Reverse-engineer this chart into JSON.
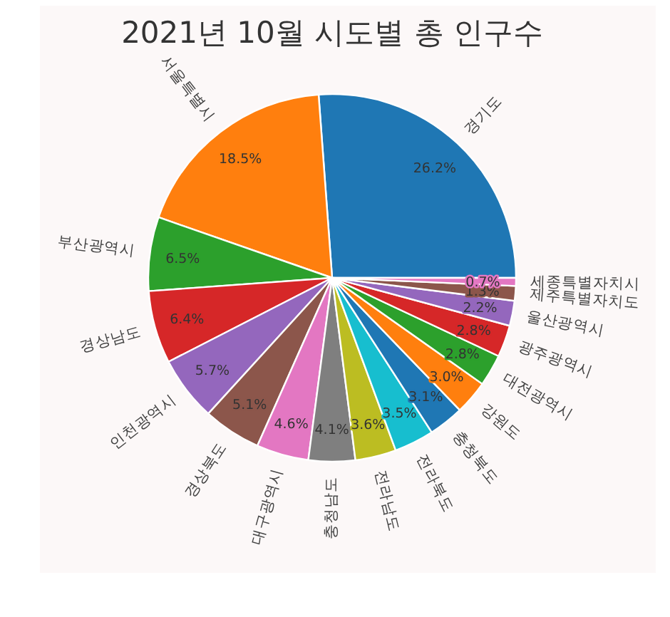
{
  "chart_data": {
    "type": "pie",
    "title": "2021년 10월 시도별 총 인구수",
    "categories": [
      "경기도",
      "서울특별시",
      "부산광역시",
      "경상남도",
      "인천광역시",
      "경상북도",
      "대구광역시",
      "충청남도",
      "전라남도",
      "전라북도",
      "충청북도",
      "강원도",
      "대전광역시",
      "광주광역시",
      "울산광역시",
      "제주특별자치도",
      "세종특별자치시"
    ],
    "values": [
      26.2,
      18.5,
      6.5,
      6.4,
      5.7,
      5.1,
      4.6,
      4.1,
      3.6,
      3.5,
      3.1,
      3.0,
      2.8,
      2.8,
      2.2,
      1.3,
      0.7
    ],
    "colors": [
      "#1f77b4",
      "#ff7f0e",
      "#2ca02c",
      "#d62728",
      "#9467bd",
      "#8c564b",
      "#e377c2",
      "#7f7f7f",
      "#bcbd22",
      "#17becf",
      "#1f77b4",
      "#ff7f0e",
      "#2ca02c",
      "#d62728",
      "#9467bd",
      "#8c564b",
      "#e377c2"
    ],
    "value_labels": [
      "26.2%",
      "18.5%",
      "6.5%",
      "6.4%",
      "5.7%",
      "5.1%",
      "4.6%",
      "4.1%",
      "3.6%",
      "3.5%",
      "3.1%",
      "3.0%",
      "2.8%",
      "2.8%",
      "2.2%",
      "1.3%",
      "0.7%"
    ]
  }
}
